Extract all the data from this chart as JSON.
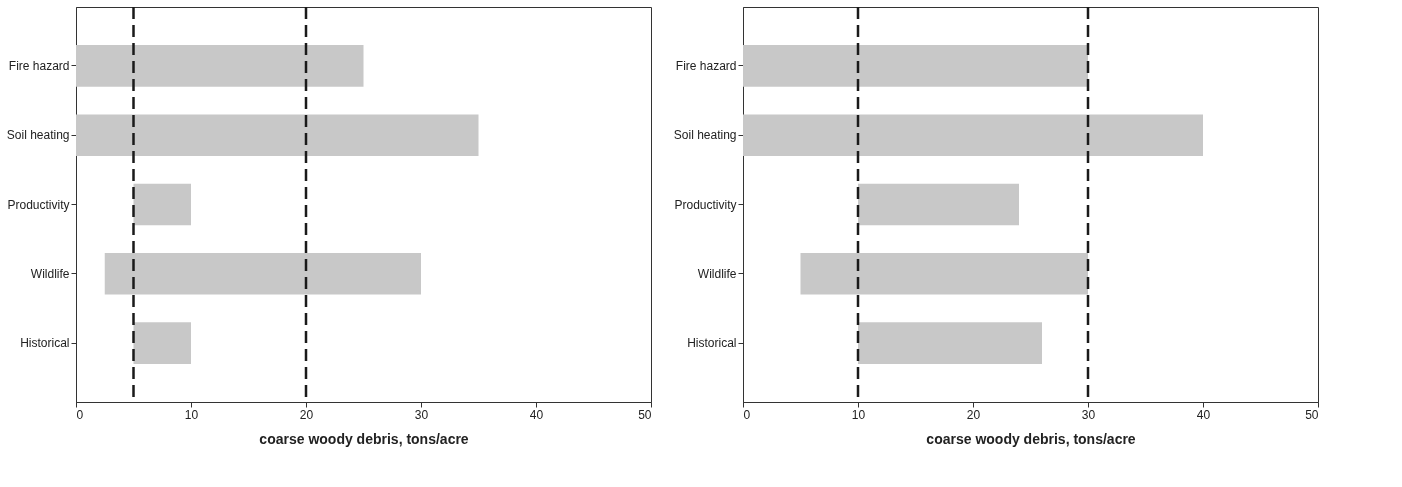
{
  "chart_data": [
    {
      "type": "bar",
      "orientation": "horizontal",
      "xlabel": "coarse woody debris, tons/acre",
      "categories": [
        "Fire hazard",
        "Soil heating",
        "Productivity",
        "Wildlife",
        "Historical"
      ],
      "base": [
        0,
        0,
        5,
        2.5,
        5
      ],
      "values": [
        25,
        35,
        5,
        27.5,
        5
      ],
      "color": "#c8c8c8",
      "xlim": [
        0,
        50
      ],
      "xticks": [
        0,
        10,
        20,
        30,
        40,
        50
      ],
      "grid": false,
      "ref_lines": [
        {
          "axis": "x",
          "value": 5,
          "color": "#1a1a1a",
          "line_style": "dashed"
        },
        {
          "axis": "x",
          "value": 20,
          "color": "#1a1a1a",
          "line_style": "dashed"
        }
      ]
    },
    {
      "type": "bar",
      "orientation": "horizontal",
      "xlabel": "coarse woody debris, tons/acre",
      "categories": [
        "Fire hazard",
        "Soil heating",
        "Productivity",
        "Wildlife",
        "Historical"
      ],
      "base": [
        0,
        0,
        10,
        5,
        10
      ],
      "values": [
        30,
        40,
        14,
        25,
        16
      ],
      "color": "#c8c8c8",
      "xlim": [
        0,
        50
      ],
      "xticks": [
        0,
        10,
        20,
        30,
        40,
        50
      ],
      "grid": false,
      "ref_lines": [
        {
          "axis": "x",
          "value": 10,
          "color": "#1a1a1a",
          "line_style": "dashed"
        },
        {
          "axis": "x",
          "value": 30,
          "color": "#1a1a1a",
          "line_style": "dashed"
        }
      ]
    }
  ]
}
